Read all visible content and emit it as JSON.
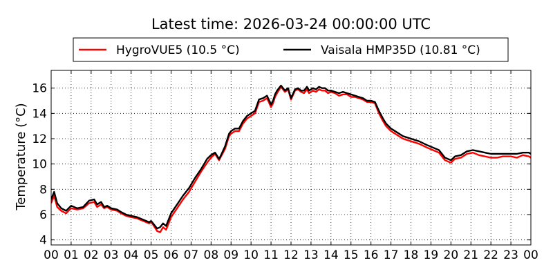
{
  "chart_data": {
    "type": "line",
    "title": "Latest time: 2026-03-24 00:00:00 UTC",
    "xlabel": "",
    "ylabel": "Temperature (°C)",
    "xlim": [
      0,
      24
    ],
    "ylim": [
      3.6,
      17.4
    ],
    "x_ticks": [
      0,
      1,
      2,
      3,
      4,
      5,
      6,
      7,
      8,
      9,
      10,
      11,
      12,
      13,
      14,
      15,
      16,
      17,
      18,
      19,
      20,
      21,
      22,
      23,
      24
    ],
    "x_tick_labels": [
      "00",
      "01",
      "02",
      "03",
      "04",
      "05",
      "06",
      "07",
      "08",
      "09",
      "10",
      "11",
      "12",
      "13",
      "14",
      "15",
      "16",
      "17",
      "18",
      "19",
      "20",
      "21",
      "22",
      "23",
      "00"
    ],
    "y_ticks": [
      4,
      6,
      8,
      10,
      12,
      14,
      16
    ],
    "y_tick_labels": [
      "4",
      "6",
      "8",
      "10",
      "12",
      "14",
      "16"
    ],
    "grid": true,
    "legend_position": "top",
    "series": [
      {
        "name": "HygroVUE5 (10.5 °C)",
        "color": "#ff0000",
        "x": [
          0.0,
          0.15,
          0.3,
          0.5,
          0.75,
          1.0,
          1.3,
          1.6,
          1.9,
          2.15,
          2.3,
          2.5,
          2.65,
          2.8,
          3.0,
          3.3,
          3.5,
          3.75,
          4.0,
          4.3,
          4.6,
          4.9,
          5.0,
          5.1,
          5.3,
          5.45,
          5.6,
          5.75,
          6.0,
          6.3,
          6.6,
          6.9,
          7.2,
          7.5,
          7.8,
          8.0,
          8.2,
          8.4,
          8.5,
          8.7,
          8.9,
          9.0,
          9.2,
          9.4,
          9.6,
          9.8,
          10.0,
          10.2,
          10.4,
          10.6,
          10.8,
          11.0,
          11.1,
          11.2,
          11.3,
          11.5,
          11.7,
          11.85,
          12.0,
          12.2,
          12.35,
          12.5,
          12.65,
          12.8,
          12.9,
          13.1,
          13.25,
          13.4,
          13.55,
          13.7,
          13.85,
          14.0,
          14.2,
          14.4,
          14.6,
          14.8,
          15.0,
          15.2,
          15.4,
          15.6,
          15.8,
          16.0,
          16.2,
          16.4,
          16.6,
          16.75,
          17.0,
          17.3,
          17.6,
          18.0,
          18.4,
          18.8,
          19.1,
          19.4,
          19.7,
          20.0,
          20.2,
          20.5,
          20.8,
          21.1,
          21.4,
          21.7,
          22.0,
          22.3,
          22.6,
          23.0,
          23.3,
          23.6,
          23.9,
          24.0
        ],
        "y": [
          6.9,
          7.5,
          6.6,
          6.3,
          6.1,
          6.5,
          6.4,
          6.5,
          6.9,
          7.0,
          6.6,
          6.8,
          6.5,
          6.6,
          6.4,
          6.3,
          6.1,
          5.9,
          5.8,
          5.7,
          5.5,
          5.3,
          5.4,
          5.2,
          4.7,
          4.6,
          5.0,
          4.8,
          5.8,
          6.5,
          7.2,
          7.8,
          8.6,
          9.4,
          10.1,
          10.5,
          10.8,
          10.3,
          10.6,
          11.2,
          12.2,
          12.4,
          12.6,
          12.6,
          13.2,
          13.6,
          13.8,
          14.0,
          14.9,
          15.0,
          15.2,
          14.5,
          14.8,
          15.3,
          15.6,
          16.1,
          15.7,
          15.9,
          15.1,
          15.8,
          15.9,
          15.7,
          15.6,
          15.9,
          15.6,
          15.8,
          15.7,
          15.9,
          15.8,
          15.8,
          15.6,
          15.7,
          15.6,
          15.4,
          15.5,
          15.5,
          15.3,
          15.3,
          15.2,
          15.1,
          14.9,
          14.9,
          14.8,
          14.0,
          13.4,
          13.0,
          12.6,
          12.3,
          12.0,
          11.8,
          11.6,
          11.3,
          11.1,
          10.9,
          10.3,
          10.1,
          10.4,
          10.5,
          10.8,
          10.9,
          10.7,
          10.6,
          10.5,
          10.5,
          10.6,
          10.6,
          10.5,
          10.7,
          10.6,
          10.5
        ]
      },
      {
        "name": "Vaisala HMP35D (10.81 °C)",
        "color": "#000000",
        "x": [
          0.0,
          0.15,
          0.3,
          0.5,
          0.75,
          1.0,
          1.3,
          1.6,
          1.9,
          2.15,
          2.3,
          2.5,
          2.65,
          2.8,
          3.0,
          3.3,
          3.5,
          3.75,
          4.0,
          4.3,
          4.6,
          4.9,
          5.0,
          5.1,
          5.3,
          5.45,
          5.6,
          5.75,
          6.0,
          6.3,
          6.6,
          6.9,
          7.2,
          7.5,
          7.8,
          8.0,
          8.2,
          8.4,
          8.5,
          8.7,
          8.9,
          9.0,
          9.2,
          9.4,
          9.6,
          9.8,
          10.0,
          10.2,
          10.4,
          10.6,
          10.8,
          11.0,
          11.1,
          11.2,
          11.3,
          11.5,
          11.7,
          11.85,
          12.0,
          12.2,
          12.35,
          12.5,
          12.65,
          12.8,
          12.9,
          13.1,
          13.25,
          13.4,
          13.55,
          13.7,
          13.85,
          14.0,
          14.2,
          14.4,
          14.6,
          14.8,
          15.0,
          15.2,
          15.4,
          15.6,
          15.8,
          16.0,
          16.2,
          16.4,
          16.6,
          16.75,
          17.0,
          17.3,
          17.6,
          18.0,
          18.4,
          18.8,
          19.1,
          19.4,
          19.7,
          20.0,
          20.2,
          20.5,
          20.8,
          21.1,
          21.4,
          21.7,
          22.0,
          22.3,
          22.6,
          23.0,
          23.3,
          23.6,
          23.9,
          24.0
        ],
        "y": [
          7.2,
          7.8,
          6.9,
          6.5,
          6.3,
          6.7,
          6.5,
          6.6,
          7.1,
          7.2,
          6.8,
          7.0,
          6.6,
          6.7,
          6.5,
          6.4,
          6.2,
          6.0,
          5.9,
          5.8,
          5.6,
          5.4,
          5.5,
          5.3,
          4.9,
          5.0,
          5.3,
          5.1,
          6.1,
          6.8,
          7.5,
          8.1,
          8.9,
          9.6,
          10.4,
          10.7,
          10.9,
          10.4,
          10.7,
          11.4,
          12.4,
          12.6,
          12.8,
          12.8,
          13.4,
          13.8,
          14.0,
          14.2,
          15.1,
          15.2,
          15.4,
          14.7,
          15.0,
          15.5,
          15.8,
          16.2,
          15.8,
          16.0,
          15.2,
          15.9,
          16.0,
          15.8,
          15.8,
          16.1,
          15.8,
          16.0,
          15.9,
          16.1,
          16.0,
          16.0,
          15.8,
          15.8,
          15.7,
          15.6,
          15.7,
          15.6,
          15.5,
          15.4,
          15.3,
          15.2,
          15.0,
          15.0,
          14.9,
          14.2,
          13.6,
          13.2,
          12.8,
          12.5,
          12.2,
          12.0,
          11.8,
          11.5,
          11.3,
          11.1,
          10.5,
          10.3,
          10.6,
          10.7,
          11.0,
          11.1,
          11.0,
          10.9,
          10.8,
          10.8,
          10.8,
          10.8,
          10.8,
          10.9,
          10.9,
          10.8
        ]
      }
    ]
  }
}
